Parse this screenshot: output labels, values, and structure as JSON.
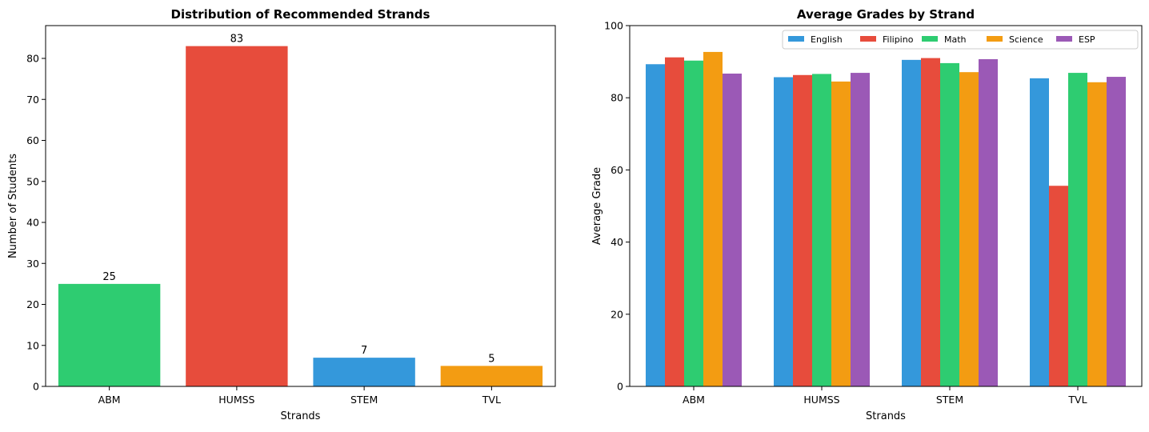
{
  "chart_data": [
    {
      "type": "bar",
      "title": "Distribution of Recommended Strands",
      "xlabel": "Strands",
      "ylabel": "Number of Students",
      "categories": [
        "ABM",
        "HUMSS",
        "STEM",
        "TVL"
      ],
      "values": [
        25,
        83,
        7,
        5
      ],
      "colors": [
        "#2ecc71",
        "#e74c3c",
        "#3498db",
        "#f39c12"
      ],
      "data_labels": [
        "25",
        "83",
        "7",
        "5"
      ],
      "ylim": [
        0,
        88
      ],
      "yticks": [
        0,
        10,
        20,
        30,
        40,
        50,
        60,
        70,
        80
      ],
      "grid": false,
      "legend": "none"
    },
    {
      "type": "bar",
      "title": "Average Grades by Strand",
      "xlabel": "Strands",
      "ylabel": "Average Grade",
      "categories": [
        "ABM",
        "HUMSS",
        "STEM",
        "TVL"
      ],
      "series": [
        {
          "name": "English",
          "color": "#3498db",
          "values": [
            89.3,
            85.7,
            90.5,
            85.4
          ]
        },
        {
          "name": "Filipino",
          "color": "#e74c3c",
          "values": [
            91.2,
            86.3,
            91.0,
            55.6
          ]
        },
        {
          "name": "Math",
          "color": "#2ecc71",
          "values": [
            90.3,
            86.6,
            89.6,
            86.9
          ]
        },
        {
          "name": "Science",
          "color": "#f39c12",
          "values": [
            92.7,
            84.5,
            87.1,
            84.3
          ]
        },
        {
          "name": "ESP",
          "color": "#9b59b6",
          "values": [
            86.7,
            86.9,
            90.7,
            85.8
          ]
        }
      ],
      "ylim": [
        0,
        100
      ],
      "yticks": [
        0,
        20,
        40,
        60,
        80,
        100
      ],
      "grid": false,
      "legend": "top-right"
    }
  ]
}
